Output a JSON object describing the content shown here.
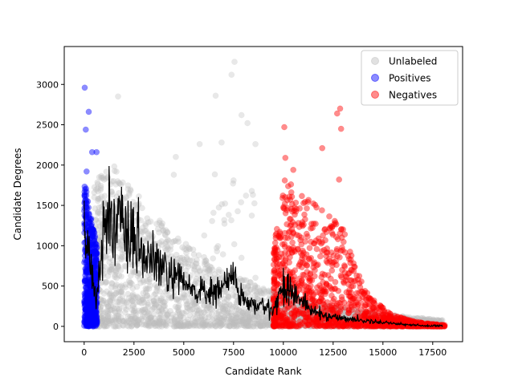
{
  "chart_data": {
    "type": "scatter",
    "xlabel": "Candidate Rank",
    "ylabel": "Candidate Degrees",
    "xlim": [
      -1000,
      19000
    ],
    "ylim": [
      -190,
      3470
    ],
    "xticks": [
      0,
      2500,
      5000,
      7500,
      10000,
      12500,
      15000,
      17500
    ],
    "yticks": [
      0,
      500,
      1000,
      1500,
      2000,
      2500,
      3000
    ],
    "legend_position": "top-right",
    "grid": false,
    "series": [
      {
        "name": "Unlabeled",
        "kind": "scatter",
        "color": "#bdbdbd",
        "opacity": 0.35,
        "points_summary": "dense cloud from rank ~500 to ~18000, degrees peaking ~2000 near rank 1500 and decaying toward 0",
        "outliers": [
          [
            7550,
            3280
          ],
          [
            7400,
            3120
          ],
          [
            1700,
            2850
          ],
          [
            6600,
            2860
          ],
          [
            7900,
            2620
          ],
          [
            5800,
            2260
          ],
          [
            6900,
            2280
          ],
          [
            4500,
            1880
          ],
          [
            8600,
            2260
          ],
          [
            8200,
            2520
          ],
          [
            4600,
            2100
          ]
        ]
      },
      {
        "name": "Positives",
        "kind": "scatter",
        "color": "#0000ff",
        "opacity": 0.45,
        "points_summary": "band at rank 0 to ~650, degrees mostly 0 to 1900",
        "outliers": [
          [
            30,
            2960
          ],
          [
            230,
            2660
          ],
          [
            80,
            2440
          ],
          [
            400,
            2160
          ],
          [
            620,
            2160
          ],
          [
            120,
            1920
          ]
        ]
      },
      {
        "name": "Negatives",
        "kind": "scatter",
        "color": "#ff0000",
        "opacity": 0.45,
        "points_summary": "cloud from rank ~9500 to ~18100, degrees up to ~2000 near rank 10000-13000 decaying to 0 by 18000",
        "outliers": [
          [
            12850,
            2700
          ],
          [
            12700,
            2640
          ],
          [
            12900,
            2450
          ],
          [
            10050,
            2470
          ],
          [
            11950,
            2210
          ],
          [
            10100,
            2090
          ],
          [
            10500,
            1940
          ],
          [
            12800,
            1820
          ]
        ]
      },
      {
        "name": "",
        "kind": "line",
        "color": "#000000",
        "x": [
          0,
          300,
          500,
          700,
          1000,
          1300,
          1500,
          1800,
          2200,
          2600,
          3000,
          3500,
          4000,
          4500,
          5000,
          5500,
          6000,
          6500,
          7000,
          7500,
          8000,
          8500,
          9000,
          9500,
          10000,
          10500,
          11000,
          11500,
          12000,
          12500,
          13000,
          13500,
          14000,
          14500,
          15000,
          15500,
          16000,
          16500,
          17000,
          17500,
          18000
        ],
        "y": [
          1250,
          900,
          380,
          550,
          1200,
          1420,
          1350,
          1200,
          1100,
          950,
          880,
          780,
          700,
          600,
          520,
          450,
          420,
          400,
          520,
          620,
          310,
          260,
          250,
          200,
          520,
          420,
          300,
          180,
          140,
          120,
          100,
          90,
          70,
          60,
          50,
          40,
          25,
          15,
          10,
          5,
          5
        ]
      }
    ],
    "legend": [
      {
        "label": "Unlabeled",
        "color": "#bdbdbd"
      },
      {
        "label": "Positives",
        "color": "#0000ff"
      },
      {
        "label": "Negatives",
        "color": "#ff0000"
      }
    ]
  }
}
